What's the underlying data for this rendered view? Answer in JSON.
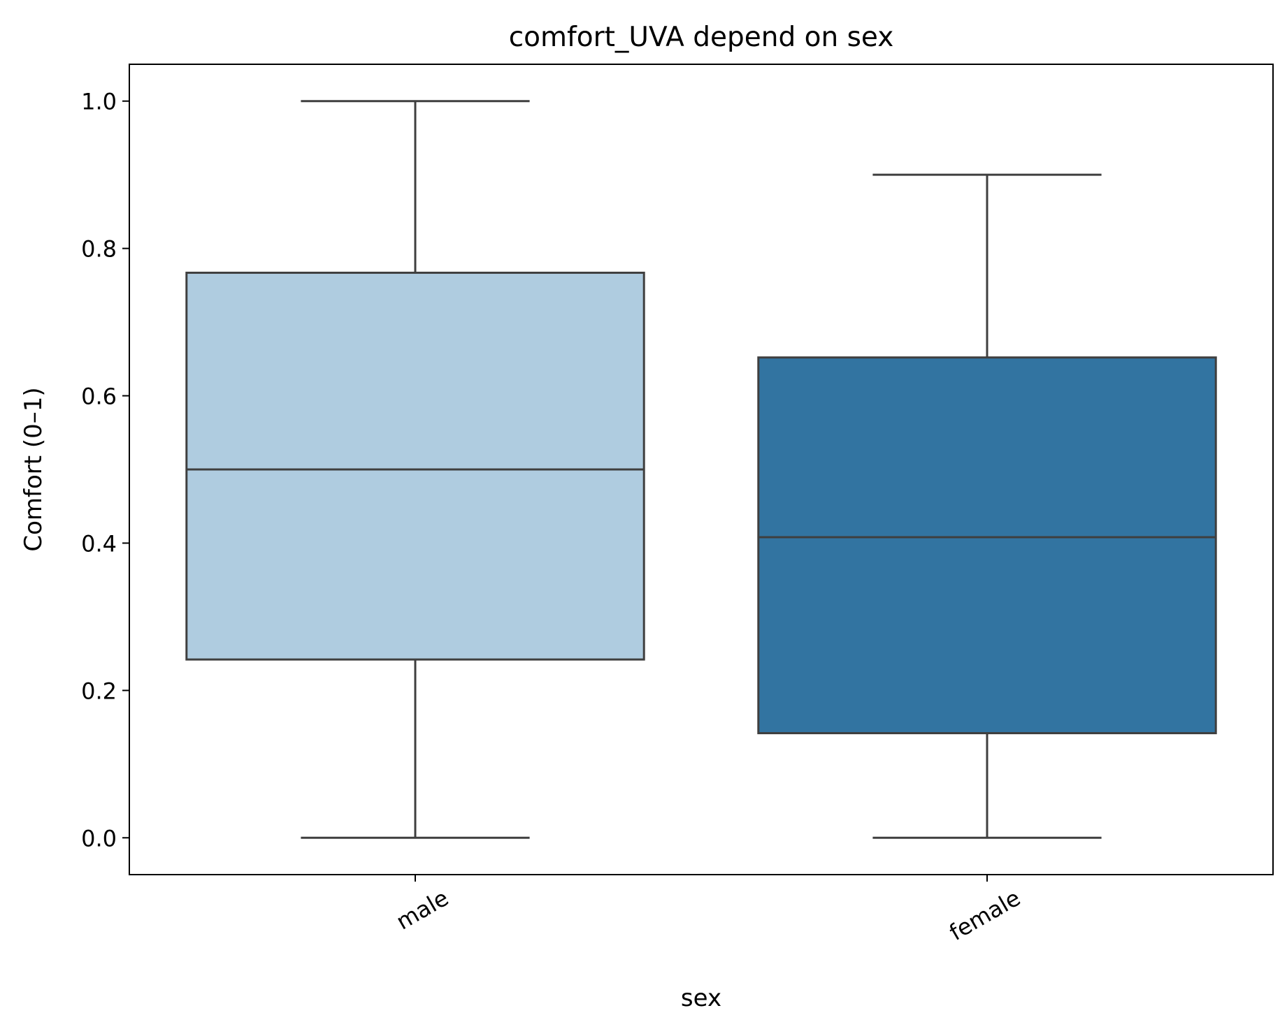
{
  "chart_data": {
    "type": "box",
    "title": "comfort_UVA depend on sex",
    "xlabel": "sex",
    "ylabel": "Comfort (0–1)",
    "ylim": [
      -0.05,
      1.05
    ],
    "yticks": [
      0.0,
      0.2,
      0.4,
      0.6,
      0.8,
      1.0
    ],
    "ytick_labels": [
      "0.0",
      "0.2",
      "0.4",
      "0.6",
      "0.8",
      "1.0"
    ],
    "categories": [
      "male",
      "female"
    ],
    "boxes": [
      {
        "category": "male",
        "whisker_low": 0.0,
        "q1": 0.242,
        "median": 0.5,
        "q3": 0.767,
        "whisker_high": 1.0,
        "color": "#afcce0"
      },
      {
        "category": "female",
        "whisker_low": 0.0,
        "q1": 0.142,
        "median": 0.408,
        "q3": 0.652,
        "whisker_high": 0.9,
        "color": "#3274a1"
      }
    ],
    "edge_color": "#3f3f3f",
    "grid": false,
    "legend": false
  }
}
